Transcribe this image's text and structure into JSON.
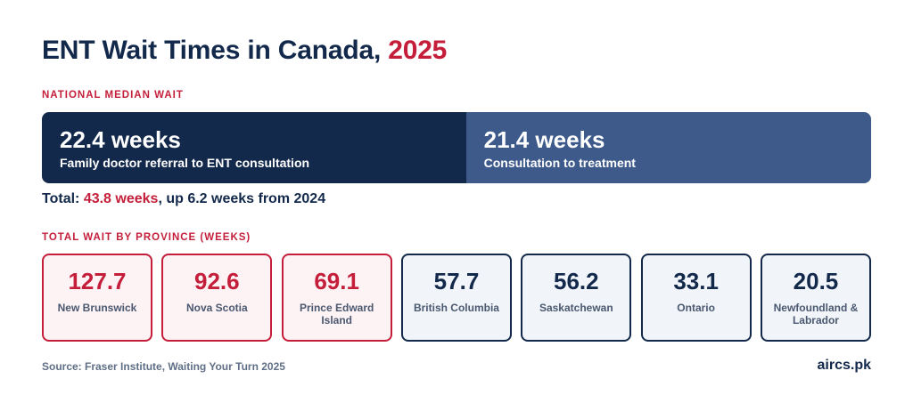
{
  "header": {
    "title_main": "ENT Wait Times in Canada, ",
    "title_year": "2025"
  },
  "national": {
    "label": "NATIONAL MEDIAN WAIT",
    "total_prefix": "Total: ",
    "total_value": "43.8 weeks",
    "total_suffix": ", up 6.2 weeks from 2024"
  },
  "province_label": "TOTAL WAIT BY PROVINCE (WEEKS)",
  "footer": {
    "source": "Source: Fraser Institute, Waiting Your Turn 2025",
    "brand": "aircs.pk"
  },
  "colors": {
    "navy": "#13294b",
    "steel_blue": "#3e5a8a",
    "crimson": "#c41e3a"
  },
  "chart_data": [
    {
      "type": "bar",
      "orientation": "horizontal-stacked",
      "segments": [
        {
          "value": 22.4,
          "value_label": "22.4 weeks",
          "label": "Family doctor referral to ENT consultation",
          "color": "#13294b"
        },
        {
          "value": 21.4,
          "value_label": "21.4 weeks",
          "label": "Consultation to treatment",
          "color": "#3e5a8a"
        }
      ],
      "total": 43.8
    },
    {
      "type": "table",
      "categories": [
        "New Brunswick",
        "Nova Scotia",
        "Prince Edward Island",
        "British Columbia",
        "Saskatchewan",
        "Ontario",
        "Newfoundland & Labrador"
      ],
      "values": [
        "127.7",
        "92.6",
        "69.1",
        "57.7",
        "56.2",
        "33.1",
        "20.5"
      ],
      "highlighted": [
        true,
        true,
        true,
        false,
        false,
        false,
        false
      ]
    }
  ]
}
